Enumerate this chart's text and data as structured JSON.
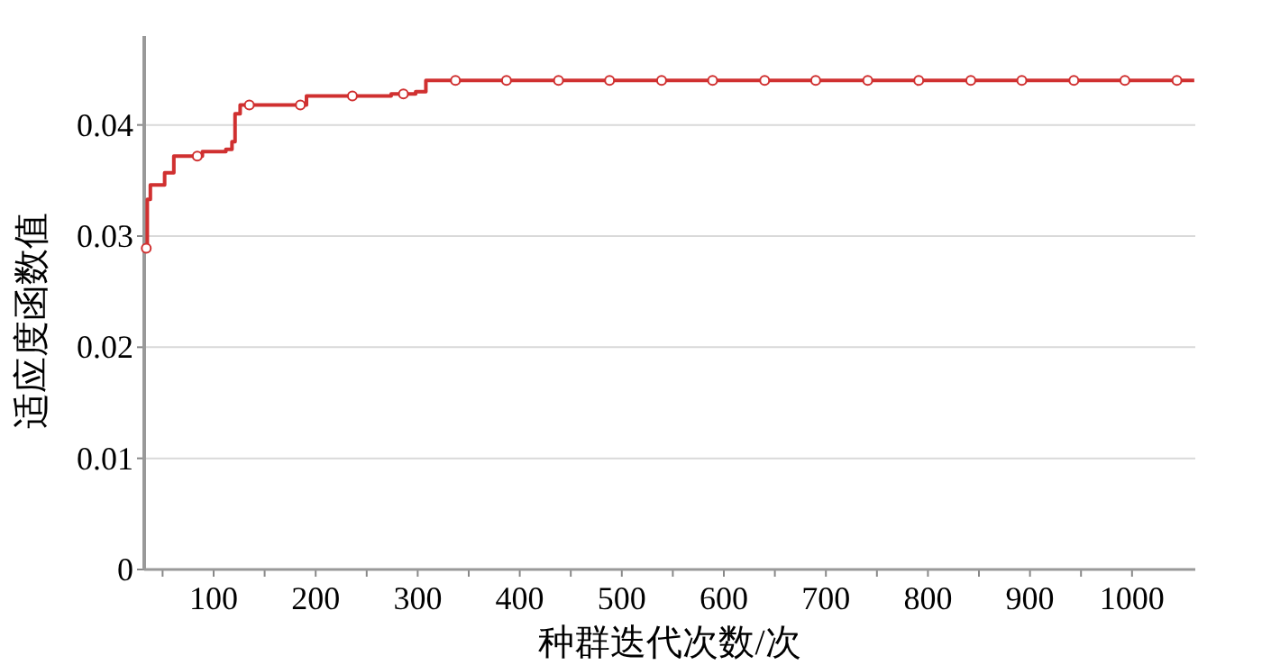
{
  "chart_data": {
    "type": "line",
    "xlabel": "种群迭代次数/次",
    "ylabel": "适应度函数值",
    "xlim": [
      32,
      1062
    ],
    "ylim": [
      0,
      0.048
    ],
    "xticks": [
      {
        "value": 50,
        "label": null
      },
      100,
      {
        "value": 150,
        "label": null
      },
      200,
      {
        "value": 250,
        "label": null
      },
      300,
      {
        "value": 350,
        "label": null
      },
      400,
      {
        "value": 450,
        "label": null
      },
      500,
      {
        "value": 550,
        "label": null
      },
      600,
      {
        "value": 650,
        "label": null
      },
      700,
      {
        "value": 750,
        "label": null
      },
      800,
      {
        "value": 850,
        "label": null
      },
      900,
      {
        "value": 950,
        "label": null
      },
      1000
    ],
    "yticks": [
      0,
      0.01,
      0.02,
      0.03,
      0.04
    ],
    "grid": "y",
    "series": [
      {
        "type": "step",
        "color": "#d03030",
        "line_style": "solid",
        "x": [
          34,
          35,
          38,
          52,
          61,
          89,
          112,
          118,
          121,
          126,
          191,
          274,
          298,
          308,
          1061
        ],
        "values": [
          0.0289,
          0.0333,
          0.0346,
          0.0357,
          0.0372,
          0.0376,
          0.0378,
          0.0385,
          0.041,
          0.0418,
          0.0426,
          0.0428,
          0.043,
          0.044,
          0.044
        ]
      },
      {
        "type": "scatter",
        "color": "#d03030",
        "marker": "circle",
        "x": [
          34,
          84,
          135,
          185,
          236,
          286,
          337,
          387,
          438,
          488,
          539,
          589,
          640,
          690,
          741,
          791,
          842,
          892,
          943,
          993,
          1044
        ],
        "values": [
          0.0289,
          0.0372,
          0.0418,
          0.0418,
          0.0426,
          0.0428,
          0.044,
          0.044,
          0.044,
          0.044,
          0.044,
          0.044,
          0.044,
          0.044,
          0.044,
          0.044,
          0.044,
          0.044,
          0.044,
          0.044,
          0.044
        ]
      }
    ]
  }
}
